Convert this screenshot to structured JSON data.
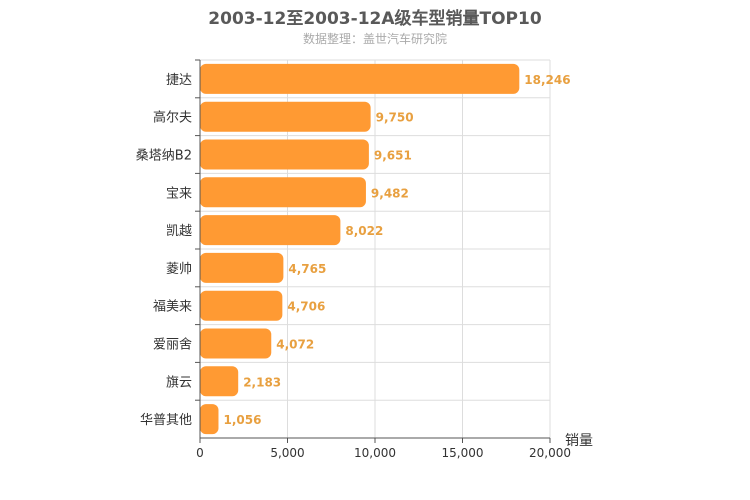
{
  "chart_data": {
    "type": "bar",
    "orientation": "horizontal",
    "title": "2003-12至2003-12A级车型销量TOP10",
    "subtitle": "数据整理：盖世汽车研究院",
    "xlabel": "销量",
    "ylabel": "",
    "xlim": [
      0,
      20000
    ],
    "xticks": [
      "0",
      "5,000",
      "10,000",
      "15,000",
      "20,000"
    ],
    "categories": [
      "捷达",
      "高尔夫",
      "桑塔纳B2",
      "宝来",
      "凯越",
      "菱帅",
      "福美来",
      "爱丽舍",
      "旗云",
      "华普其他"
    ],
    "values": [
      18246,
      9750,
      9651,
      9482,
      8022,
      4765,
      4706,
      4072,
      2183,
      1056
    ],
    "value_labels": [
      "18,246",
      "9,750",
      "9,651",
      "9,482",
      "8,022",
      "4,765",
      "4,706",
      "4,072",
      "2,183",
      "1,056"
    ],
    "bar_color": "#ff9a33",
    "label_color": "#e8a040",
    "grid": true,
    "legend": "none"
  }
}
